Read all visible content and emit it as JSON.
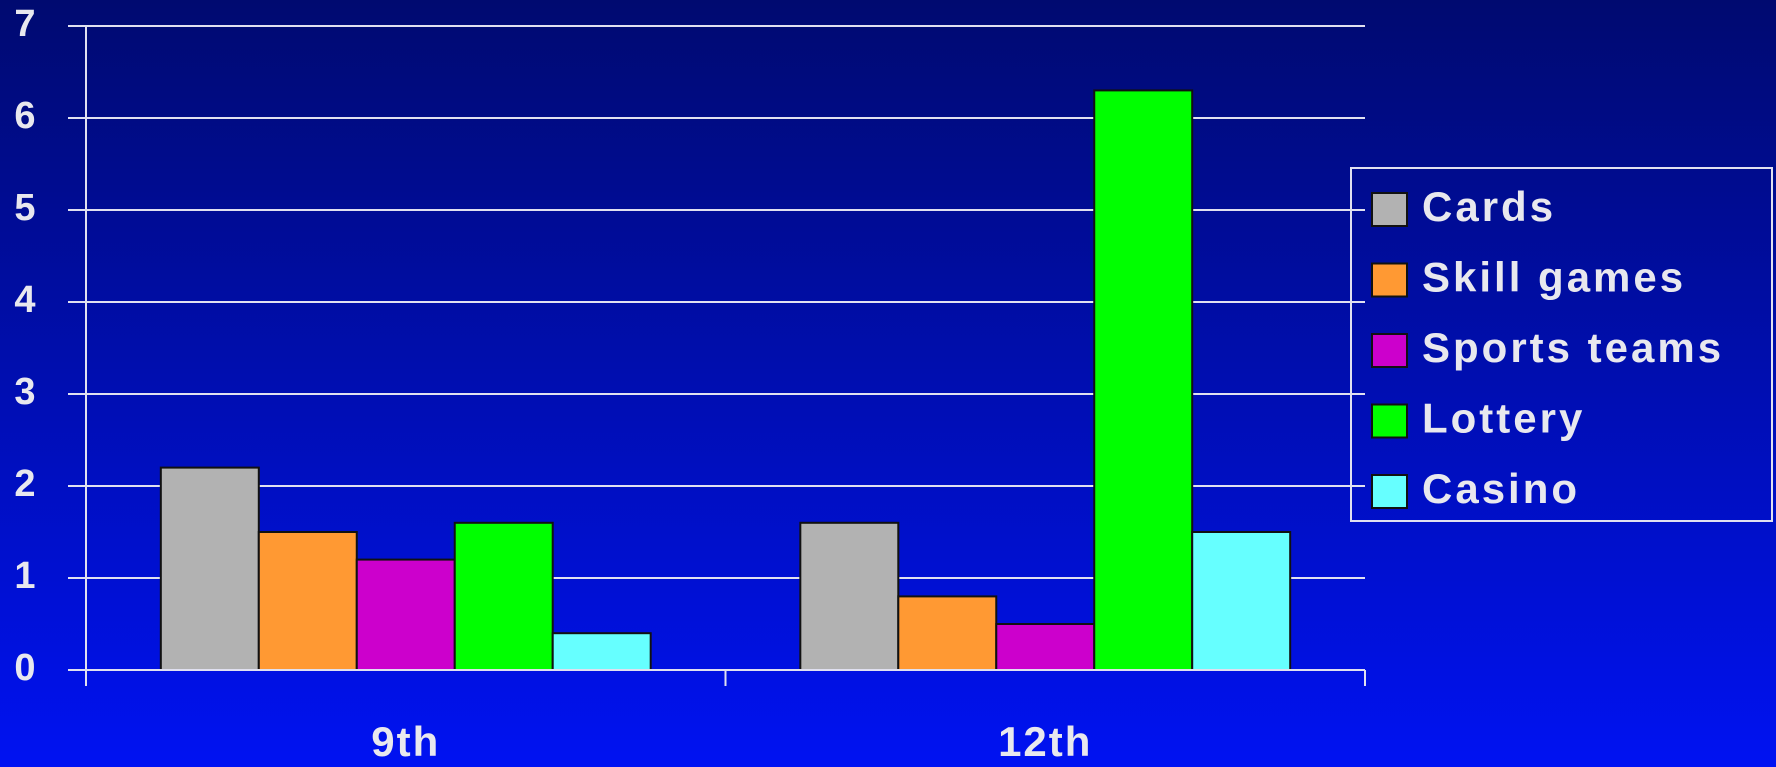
{
  "chart_data": {
    "type": "bar",
    "categories": [
      "9th",
      "12th"
    ],
    "series": [
      {
        "name": "Cards",
        "color": "#b2b2b2",
        "values": [
          2.2,
          1.6
        ]
      },
      {
        "name": "Skill games",
        "color": "#ff9933",
        "values": [
          1.5,
          0.8
        ]
      },
      {
        "name": "Sports teams",
        "color": "#cc00cc",
        "values": [
          1.2,
          0.5
        ]
      },
      {
        "name": "Lottery",
        "color": "#00ff00",
        "values": [
          1.6,
          6.3
        ]
      },
      {
        "name": "Casino",
        "color": "#66ffff",
        "values": [
          0.4,
          1.5
        ]
      }
    ],
    "ylim": [
      0,
      7
    ],
    "yticks": [
      0,
      1,
      2,
      3,
      4,
      5,
      6,
      7
    ],
    "grid": true,
    "legend": "right"
  }
}
